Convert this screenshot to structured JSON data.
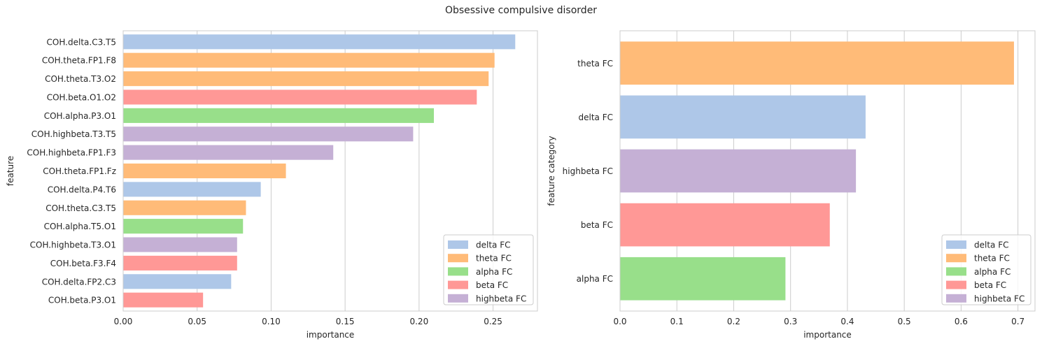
{
  "figure": {
    "title": "Obsessive compulsive disorder"
  },
  "colors": {
    "delta FC": "#aec7e8",
    "theta FC": "#ffbb78",
    "alpha FC": "#98df8a",
    "beta FC": "#ff9896",
    "highbeta FC": "#c5b0d5"
  },
  "legend": {
    "entries": [
      "delta FC",
      "theta FC",
      "alpha FC",
      "beta FC",
      "highbeta FC"
    ],
    "position": "lower-right"
  },
  "chart_data": [
    {
      "type": "bar",
      "orientation": "horizontal",
      "xlabel": "importance",
      "ylabel": "feature",
      "xlim": [
        0,
        0.28
      ],
      "xticks": [
        0.0,
        0.05,
        0.1,
        0.15,
        0.2,
        0.25
      ],
      "xtick_labels": [
        "0.00",
        "0.05",
        "0.10",
        "0.15",
        "0.20",
        "0.25"
      ],
      "grid": "vertical",
      "legend": "lower-right",
      "categories": [
        "COH.delta.C3.T5",
        "COH.theta.FP1.F8",
        "COH.theta.T3.O2",
        "COH.beta.O1.O2",
        "COH.alpha.P3.O1",
        "COH.highbeta.T3.T5",
        "COH.highbeta.FP1.F3",
        "COH.theta.FP1.Fz",
        "COH.delta.P4.T6",
        "COH.theta.C3.T5",
        "COH.alpha.T5.O1",
        "COH.highbeta.T3.O1",
        "COH.beta.F3.F4",
        "COH.delta.FP2.C3",
        "COH.beta.P3.O1"
      ],
      "values": [
        0.265,
        0.251,
        0.247,
        0.239,
        0.21,
        0.196,
        0.142,
        0.11,
        0.093,
        0.083,
        0.081,
        0.077,
        0.077,
        0.073,
        0.054
      ],
      "bar_category": [
        "delta FC",
        "theta FC",
        "theta FC",
        "beta FC",
        "alpha FC",
        "highbeta FC",
        "highbeta FC",
        "theta FC",
        "delta FC",
        "theta FC",
        "alpha FC",
        "highbeta FC",
        "beta FC",
        "delta FC",
        "beta FC"
      ]
    },
    {
      "type": "bar",
      "orientation": "horizontal",
      "xlabel": "importance",
      "ylabel": "feature category",
      "xlim": [
        0,
        0.73
      ],
      "xticks": [
        0,
        0.1,
        0.2,
        0.3,
        0.4,
        0.5,
        0.6,
        0.7
      ],
      "xtick_labels": [
        "0.0",
        "0.1",
        "0.2",
        "0.3",
        "0.4",
        "0.5",
        "0.6",
        "0.7"
      ],
      "grid": "vertical",
      "legend": "lower-right",
      "categories": [
        "theta FC",
        "delta FC",
        "highbeta FC",
        "beta FC",
        "alpha FC"
      ],
      "values": [
        0.693,
        0.432,
        0.415,
        0.369,
        0.291
      ],
      "bar_category": [
        "theta FC",
        "delta FC",
        "highbeta FC",
        "beta FC",
        "alpha FC"
      ]
    }
  ]
}
